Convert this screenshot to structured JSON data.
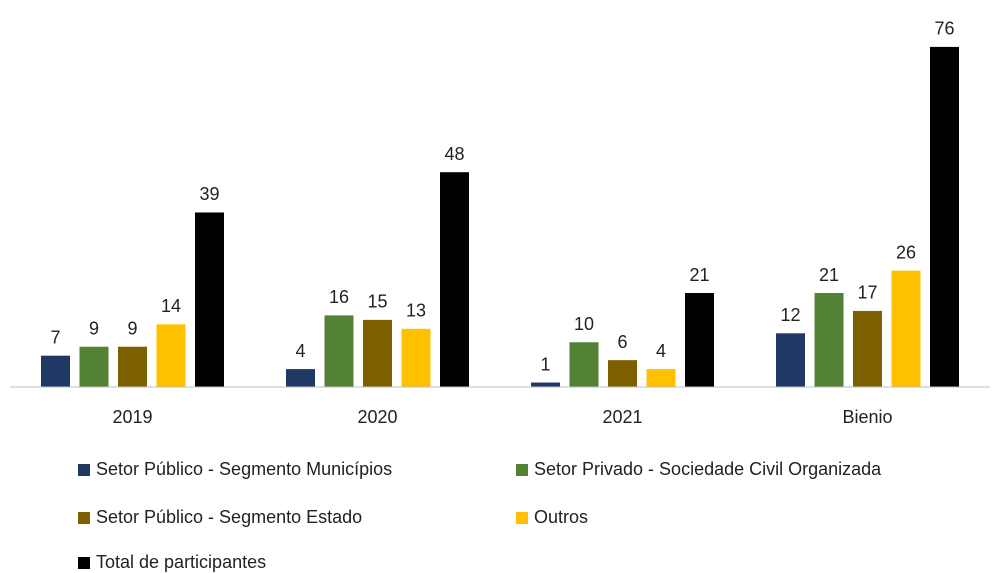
{
  "chart_data": {
    "type": "bar",
    "categories": [
      "2019",
      "2020",
      "2021",
      "Bienio"
    ],
    "series": [
      {
        "name": "Setor Público - Segmento Municípios",
        "color": "#203864",
        "values": [
          7,
          4,
          1,
          12
        ]
      },
      {
        "name": "Setor Privado - Sociedade Civil Organizada",
        "color": "#548235",
        "values": [
          9,
          16,
          10,
          21
        ]
      },
      {
        "name": "Setor Público - Segmento Estado",
        "color": "#7f6000",
        "values": [
          9,
          15,
          6,
          17
        ]
      },
      {
        "name": "Outros",
        "color": "#ffc000",
        "values": [
          14,
          13,
          4,
          26
        ]
      },
      {
        "name": "Total de participantes",
        "color": "#000000",
        "values": [
          39,
          48,
          21,
          76
        ]
      }
    ],
    "ylim": [
      0,
      80
    ]
  }
}
